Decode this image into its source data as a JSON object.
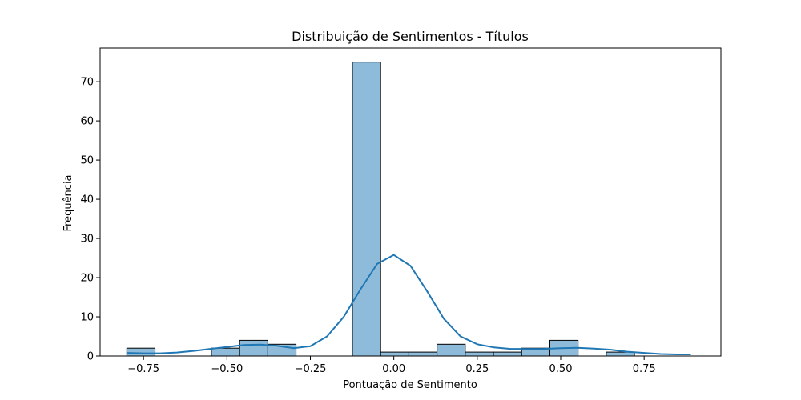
{
  "chart_data": {
    "type": "bar",
    "title": "Distribuição de Sentimentos - Títulos",
    "xlabel": "Pontuação de Sentimento",
    "ylabel": "Frequência",
    "xlim": [
      -0.88,
      0.98
    ],
    "ylim": [
      0,
      78.6
    ],
    "xticks": [
      -0.75,
      -0.5,
      -0.25,
      0.0,
      0.25,
      0.5,
      0.75
    ],
    "xtick_labels": [
      "−0.75",
      "−0.50",
      "−0.25",
      "0.00",
      "0.25",
      "0.50",
      "0.75"
    ],
    "yticks": [
      0,
      10,
      20,
      30,
      40,
      50,
      60,
      70
    ],
    "ytick_labels": [
      "0",
      "10",
      "20",
      "30",
      "40",
      "50",
      "60",
      "70"
    ],
    "bin_start": -0.8,
    "bin_width": 0.0845,
    "values": [
      2,
      0,
      0,
      2,
      4,
      3,
      0,
      0,
      75,
      1,
      1,
      3,
      1,
      1,
      2,
      4,
      0,
      1
    ],
    "kde": {
      "x": [
        -0.8,
        -0.75,
        -0.7,
        -0.65,
        -0.6,
        -0.55,
        -0.5,
        -0.45,
        -0.4,
        -0.35,
        -0.3,
        -0.25,
        -0.2,
        -0.15,
        -0.1,
        -0.05,
        0.0,
        0.05,
        0.1,
        0.15,
        0.2,
        0.25,
        0.3,
        0.35,
        0.4,
        0.45,
        0.5,
        0.55,
        0.6,
        0.65,
        0.7,
        0.75,
        0.8,
        0.85,
        0.89
      ],
      "y": [
        0.8,
        0.7,
        0.7,
        0.9,
        1.3,
        1.8,
        2.3,
        2.8,
        2.9,
        2.6,
        2.0,
        2.5,
        5.0,
        10.0,
        17.0,
        23.5,
        25.8,
        23.0,
        16.5,
        9.5,
        5.0,
        3.0,
        2.2,
        1.8,
        1.8,
        1.8,
        2.0,
        2.1,
        1.9,
        1.6,
        1.1,
        0.8,
        0.5,
        0.4,
        0.4
      ]
    },
    "bar_color": "#8fbbda",
    "bar_edge": "#000000",
    "line_color": "#1f77b4",
    "grid": false,
    "legend": "none"
  }
}
